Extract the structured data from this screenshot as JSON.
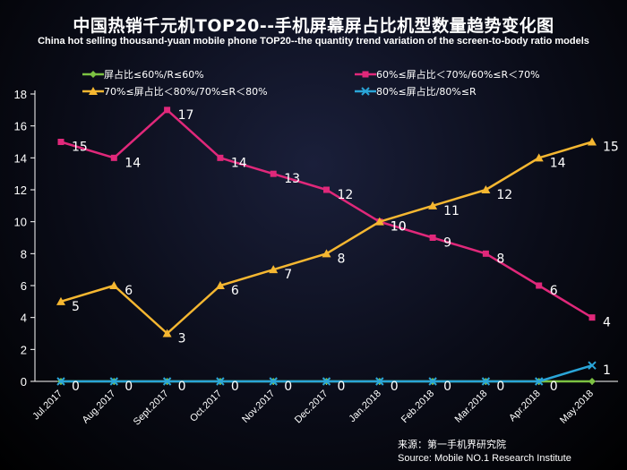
{
  "chart_data": {
    "type": "line",
    "title": "中国热销千元机TOP20--手机屏幕屏占比机型数量趋势变化图",
    "subtitle": "China hot selling thousand-yuan mobile phone TOP20--the quantity trend variation of the screen-to-body ratio models",
    "categories": [
      "Jul.2017",
      "Aug.2017",
      "Sept.2017",
      "Oct.2017",
      "Nov.2017",
      "Dec.2017",
      "Jan.2018",
      "Feb.2018",
      "Mar.2018",
      "Apr.2018",
      "May.2018"
    ],
    "ylim": [
      0,
      18
    ],
    "yticks": [
      0,
      2,
      4,
      6,
      8,
      10,
      12,
      14,
      16,
      18
    ],
    "grid": false,
    "legend_position": "top",
    "series": [
      {
        "name": "屏占比≤60%/R≤60%",
        "color": "#7cc242",
        "marker": "diamond",
        "values": [
          0,
          0,
          0,
          0,
          0,
          0,
          0,
          0,
          0,
          0,
          0
        ]
      },
      {
        "name": "60%≤屏占比＜70%/60%≤R＜70%",
        "color": "#e0287a",
        "marker": "square",
        "values": [
          15,
          14,
          17,
          14,
          13,
          12,
          10,
          9,
          8,
          6,
          4
        ]
      },
      {
        "name": "70%≤屏占比＜80%/70%≤R＜80%",
        "color": "#f5b731",
        "marker": "triangle",
        "values": [
          5,
          6,
          3,
          6,
          7,
          8,
          10,
          11,
          12,
          14,
          15
        ]
      },
      {
        "name": "80%≤屏占比/80%≤R",
        "color": "#2aa5d8",
        "marker": "x",
        "values": [
          0,
          0,
          0,
          0,
          0,
          0,
          0,
          0,
          0,
          0,
          1
        ]
      }
    ]
  },
  "source": {
    "line_cn": "来源：第一手机界研究院",
    "line_en": "Source: Mobile NO.1 Research Institute"
  }
}
